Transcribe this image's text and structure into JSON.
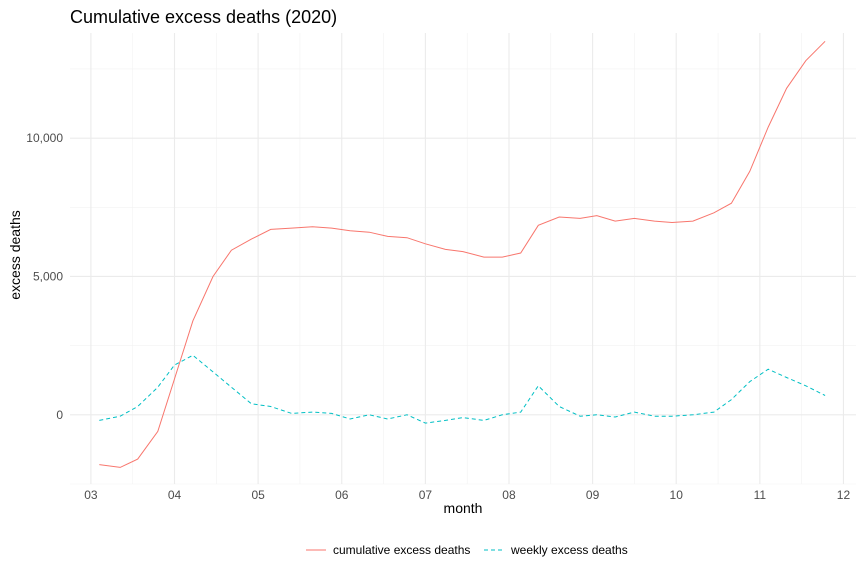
{
  "chart_data": {
    "type": "line",
    "title": "Cumulative excess deaths (2020)",
    "xlabel": "month",
    "ylabel": "excess deaths",
    "xlim": [
      2.75,
      12.15
    ],
    "ylim": [
      -2500,
      13800
    ],
    "x_ticks": [
      3,
      4,
      5,
      6,
      7,
      8,
      9,
      10,
      11,
      12
    ],
    "x_tick_labels": [
      "03",
      "04",
      "05",
      "06",
      "07",
      "08",
      "09",
      "10",
      "11",
      "12"
    ],
    "y_ticks": [
      0,
      5000,
      10000
    ],
    "y_tick_labels": [
      "0",
      "5,000",
      "10,000"
    ],
    "grid": true,
    "legend_position": "bottom",
    "series": [
      {
        "name": "cumulative excess deaths",
        "color": "#f8766d",
        "dash": "solid",
        "x": [
          3.1,
          3.35,
          3.56,
          3.8,
          4.0,
          4.22,
          4.46,
          4.68,
          4.92,
          5.15,
          5.4,
          5.65,
          5.88,
          6.1,
          6.33,
          6.55,
          6.78,
          7.0,
          7.24,
          7.45,
          7.7,
          7.92,
          8.14,
          8.35,
          8.6,
          8.85,
          9.05,
          9.27,
          9.5,
          9.74,
          9.95,
          10.2,
          10.45,
          10.66,
          10.88,
          11.1,
          11.32,
          11.55,
          11.78
        ],
        "y": [
          -1800,
          -1900,
          -1600,
          -600,
          1300,
          3400,
          5000,
          5950,
          6350,
          6700,
          6750,
          6800,
          6750,
          6650,
          6600,
          6450,
          6400,
          6180,
          5980,
          5900,
          5700,
          5700,
          5850,
          6850,
          7150,
          7100,
          7200,
          7000,
          7100,
          7000,
          6950,
          7000,
          7300,
          7650,
          8800,
          10400,
          11800,
          12800,
          13500
        ]
      },
      {
        "name": "weekly excess deaths",
        "color": "#00bfc4",
        "dash": "dashed",
        "x": [
          3.1,
          3.35,
          3.56,
          3.8,
          4.0,
          4.22,
          4.46,
          4.68,
          4.92,
          5.15,
          5.4,
          5.65,
          5.88,
          6.1,
          6.33,
          6.55,
          6.78,
          7.0,
          7.24,
          7.45,
          7.7,
          7.92,
          8.14,
          8.35,
          8.6,
          8.85,
          9.05,
          9.27,
          9.5,
          9.74,
          9.95,
          10.2,
          10.45,
          10.66,
          10.88,
          11.1,
          11.32,
          11.55,
          11.78
        ],
        "y": [
          -200,
          -50,
          300,
          1000,
          1800,
          2150,
          1550,
          1000,
          400,
          300,
          50,
          100,
          50,
          -150,
          0,
          -150,
          0,
          -300,
          -200,
          -100,
          -200,
          0,
          100,
          1050,
          300,
          -50,
          0,
          -80,
          100,
          -50,
          -50,
          0,
          100,
          550,
          1200,
          1650,
          1350,
          1050,
          700
        ]
      }
    ]
  }
}
